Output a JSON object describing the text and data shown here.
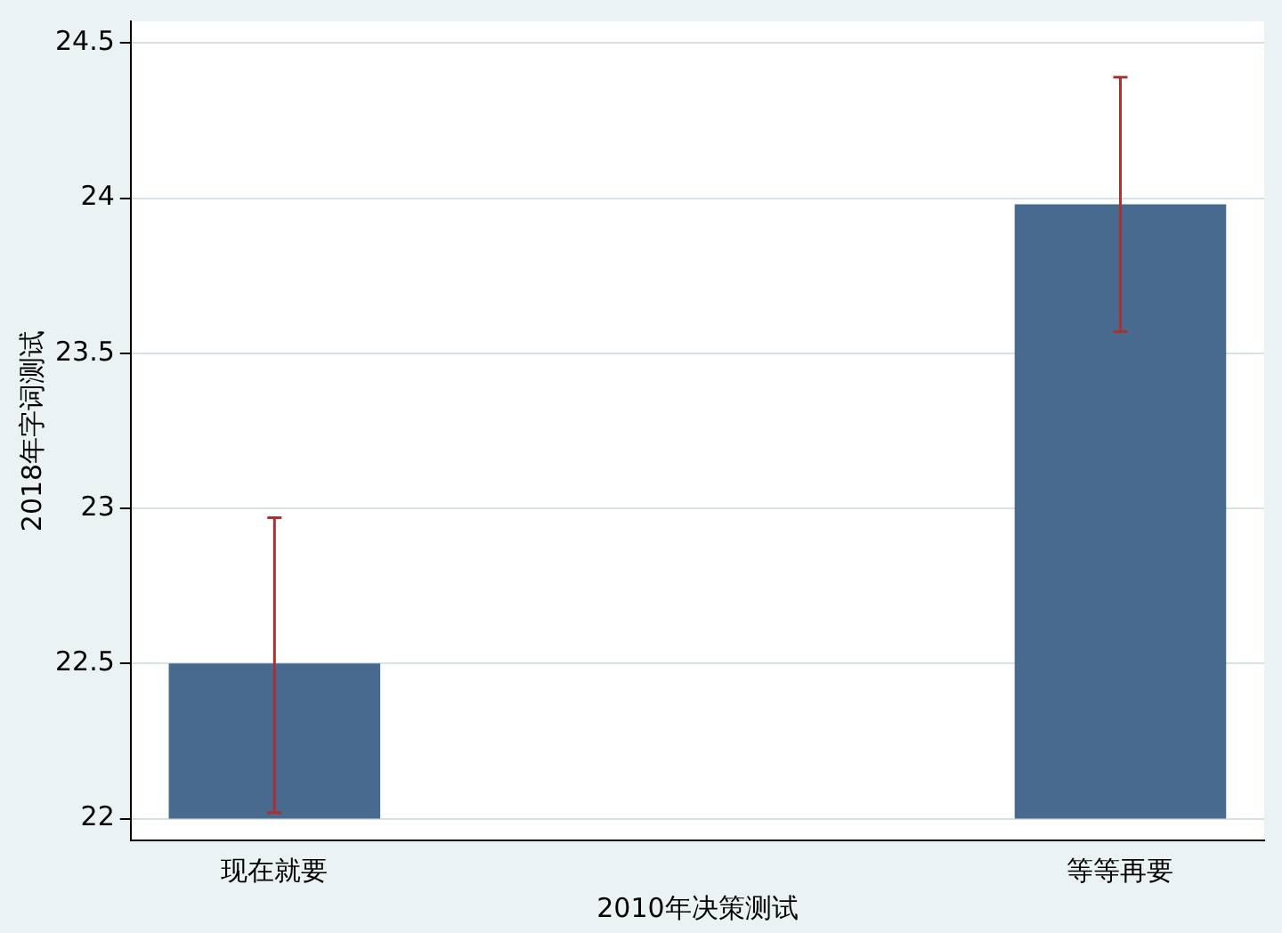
{
  "chart_data": {
    "type": "bar",
    "xlabel": "2010年决策测试",
    "ylabel": "2018年字词测试",
    "categories": [
      "现在就要",
      "等等再要"
    ],
    "base": [
      22,
      22
    ],
    "values": [
      0.5,
      1.98
    ],
    "errors": [
      [
        22.02,
        22.97
      ],
      [
        23.57,
        24.39
      ]
    ],
    "color": "#476a8e",
    "ylim": [
      21.93,
      24.57
    ],
    "yticks": [
      22,
      22.5,
      23,
      23.5,
      24,
      24.5
    ],
    "grid": "y"
  }
}
